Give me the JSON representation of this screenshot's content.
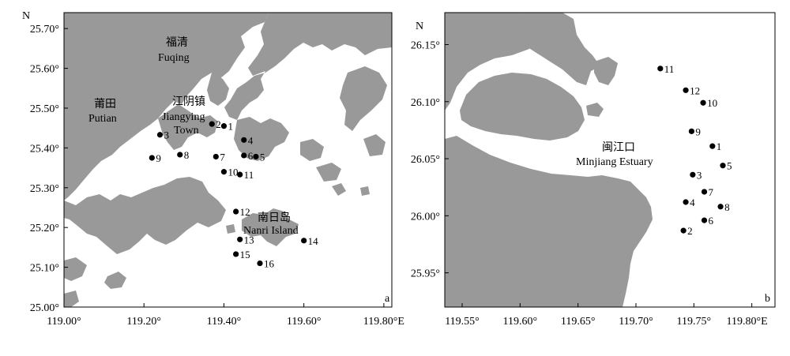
{
  "colors": {
    "land": "#999999",
    "sea": "#ffffff",
    "station": "#000000",
    "frame": "#000000"
  },
  "panel_a": {
    "panel_label": "a",
    "north_label": "N",
    "y_ticks": [
      "25.70°",
      "25.60°",
      "25.50°",
      "25.40°",
      "25.30°",
      "25.20°",
      "25.10°",
      "25.00°"
    ],
    "x_ticks": [
      "119.00°",
      "119.20°",
      "119.40°",
      "119.60°",
      "119.80°E"
    ],
    "places": [
      {
        "id": "fuqing-cn",
        "text": "福清"
      },
      {
        "id": "fuqing-en",
        "text": "Fuqing"
      },
      {
        "id": "putian-cn",
        "text": "莆田"
      },
      {
        "id": "putian-en",
        "text": "Putian"
      },
      {
        "id": "jiangying-cn",
        "text": "江阴镇"
      },
      {
        "id": "jiangying-en1",
        "text": "Jiangying"
      },
      {
        "id": "jiangying-en2",
        "text": "Town"
      },
      {
        "id": "nanri-cn",
        "text": "南日岛"
      },
      {
        "id": "nanri-en",
        "text": "Nanri Island"
      }
    ],
    "stations": [
      {
        "label": "1",
        "lon": 119.4,
        "lat": 25.455
      },
      {
        "label": "2",
        "lon": 119.37,
        "lat": 25.46
      },
      {
        "label": "3",
        "lon": 119.24,
        "lat": 25.433
      },
      {
        "label": "4",
        "lon": 119.45,
        "lat": 25.42
      },
      {
        "label": "5",
        "lon": 119.48,
        "lat": 25.378
      },
      {
        "label": "6",
        "lon": 119.45,
        "lat": 25.381
      },
      {
        "label": "7",
        "lon": 119.38,
        "lat": 25.378
      },
      {
        "label": "8",
        "lon": 119.29,
        "lat": 25.383
      },
      {
        "label": "9",
        "lon": 119.22,
        "lat": 25.375
      },
      {
        "label": "10",
        "lon": 119.4,
        "lat": 25.34
      },
      {
        "label": "11",
        "lon": 119.44,
        "lat": 25.333
      },
      {
        "label": "12",
        "lon": 119.43,
        "lat": 25.24
      },
      {
        "label": "13",
        "lon": 119.44,
        "lat": 25.17
      },
      {
        "label": "14",
        "lon": 119.6,
        "lat": 25.167
      },
      {
        "label": "15",
        "lon": 119.43,
        "lat": 25.133
      },
      {
        "label": "16",
        "lon": 119.49,
        "lat": 25.11
      }
    ]
  },
  "panel_b": {
    "panel_label": "b",
    "north_label": "N",
    "y_ticks": [
      "26.15°",
      "26.10°",
      "26.05°",
      "26.00°",
      "25.95°"
    ],
    "x_ticks": [
      "119.55°",
      "119.60°",
      "119.65°",
      "119.70°",
      "119.75°",
      "119.80°E"
    ],
    "places": [
      {
        "id": "minjiang-cn",
        "text": "闽江口"
      },
      {
        "id": "minjiang-en",
        "text": "Minjiang Estuary"
      }
    ],
    "stations": [
      {
        "label": "11",
        "lon": 119.721,
        "lat": 26.129
      },
      {
        "label": "12",
        "lon": 119.743,
        "lat": 26.11
      },
      {
        "label": "10",
        "lon": 119.758,
        "lat": 26.099
      },
      {
        "label": "9",
        "lon": 119.748,
        "lat": 26.074
      },
      {
        "label": "1",
        "lon": 119.766,
        "lat": 26.061
      },
      {
        "label": "5",
        "lon": 119.775,
        "lat": 26.044
      },
      {
        "label": "3",
        "lon": 119.749,
        "lat": 26.036
      },
      {
        "label": "7",
        "lon": 119.759,
        "lat": 26.021
      },
      {
        "label": "4",
        "lon": 119.743,
        "lat": 26.012
      },
      {
        "label": "8",
        "lon": 119.773,
        "lat": 26.008
      },
      {
        "label": "6",
        "lon": 119.759,
        "lat": 25.996
      },
      {
        "label": "2",
        "lon": 119.741,
        "lat": 25.987
      }
    ]
  }
}
